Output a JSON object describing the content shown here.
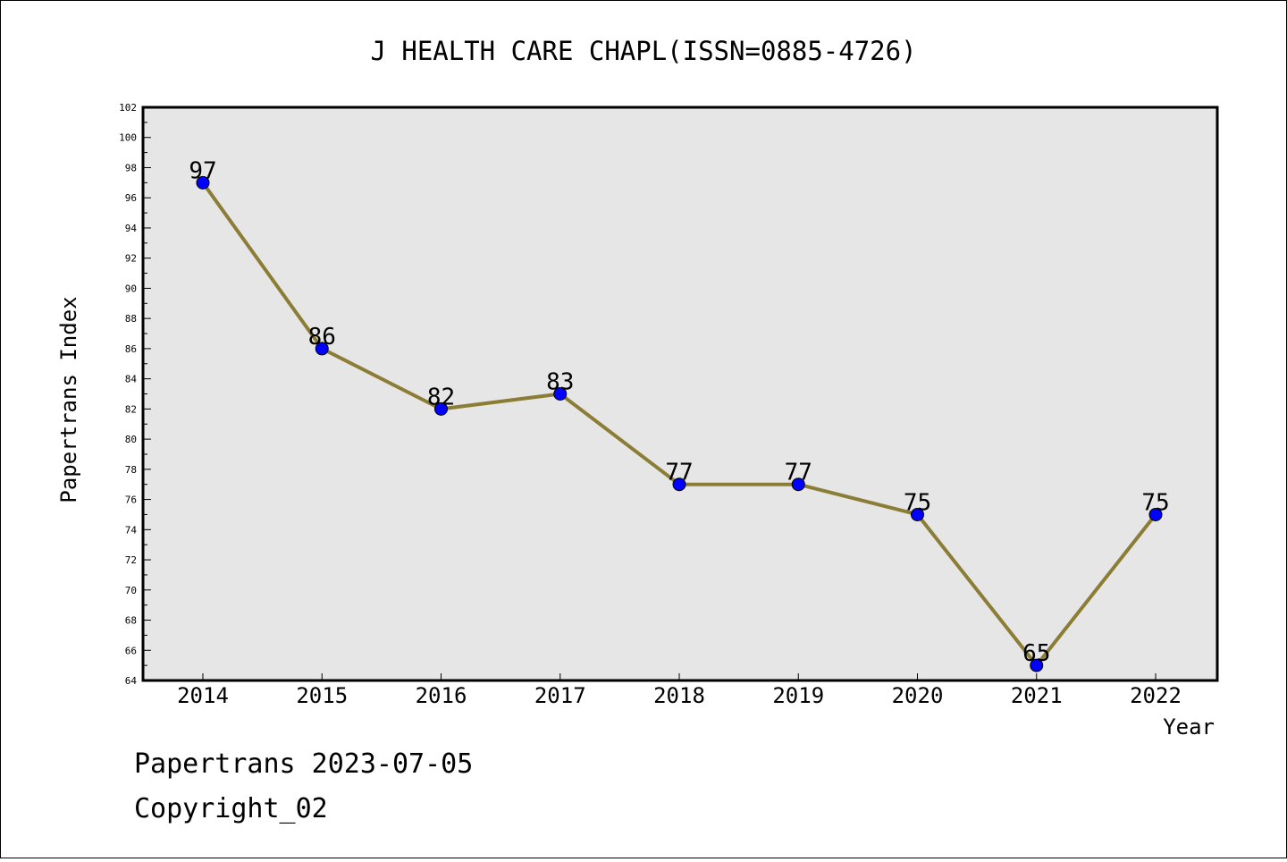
{
  "chart_data": {
    "type": "line",
    "title": "J HEALTH CARE CHAPL(ISSN=0885-4726)",
    "xlabel": "Year",
    "ylabel": "Papertrans Index",
    "categories": [
      "2014",
      "2015",
      "2016",
      "2017",
      "2018",
      "2019",
      "2020",
      "2021",
      "2022"
    ],
    "series": [
      {
        "values": [
          97,
          86,
          82,
          83,
          77,
          77,
          75,
          65,
          75
        ]
      }
    ],
    "data_labels": [
      "97",
      "86",
      "82",
      "83",
      "77",
      "77",
      "75",
      "65",
      "75"
    ],
    "ylim": [
      64,
      102
    ],
    "y_ticks": [
      "64",
      "66",
      "68",
      "70",
      "72",
      "74",
      "76",
      "78",
      "80",
      "82",
      "84",
      "86",
      "88",
      "90",
      "92",
      "94",
      "96",
      "98",
      "100",
      "102"
    ],
    "y_minor_step": 1,
    "grid": false,
    "legend": "none",
    "colors": {
      "plot_background": "#e6e6e6",
      "line": "#8b7d35",
      "marker": "#0000ff",
      "axis": "#000000"
    }
  },
  "footer": {
    "line1": "Papertrans 2023-07-05",
    "line2": "Copyright_02"
  }
}
